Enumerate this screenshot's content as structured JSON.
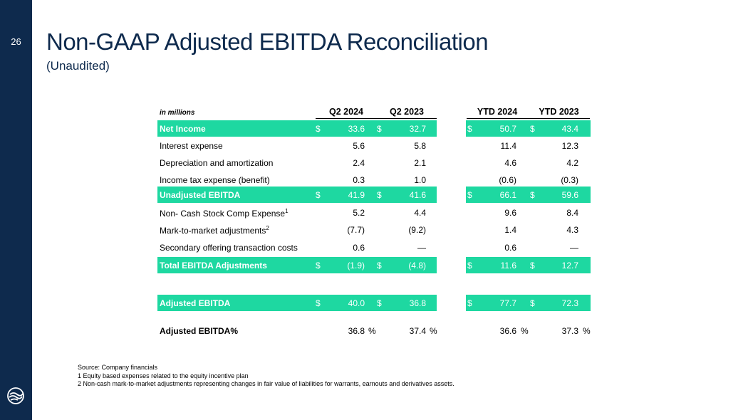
{
  "page_number": "26",
  "title": "Non-GAAP Adjusted EBITDA Reconciliation",
  "subtitle": "(Unaudited)",
  "table": {
    "unit_label": "in millions",
    "columns": [
      "Q2 2024",
      "Q2 2023",
      "YTD 2024",
      "YTD 2023"
    ],
    "rows": [
      {
        "label": "Net Income",
        "sup": "",
        "highlight": true,
        "values": [
          "33.6",
          "32.7",
          "50.7",
          "43.4"
        ]
      },
      {
        "label": "Interest expense",
        "sup": "",
        "highlight": false,
        "values": [
          "5.6",
          "5.8",
          "11.4",
          "12.3"
        ]
      },
      {
        "label": "Depreciation and amortization",
        "sup": "",
        "highlight": false,
        "values": [
          "2.4",
          "2.1",
          "4.6",
          "4.2"
        ]
      },
      {
        "label": "Income tax expense (benefit)",
        "sup": "",
        "highlight": false,
        "values": [
          "0.3",
          "1.0",
          "(0.6)",
          "(0.3)"
        ]
      },
      {
        "label": "Unadjusted EBITDA",
        "sup": "",
        "highlight": true,
        "values": [
          "41.9",
          "41.6",
          "66.1",
          "59.6"
        ]
      },
      {
        "label": "Non- Cash Stock  Comp Expense",
        "sup": "1",
        "highlight": false,
        "values": [
          "5.2",
          "4.4",
          "9.6",
          "8.4"
        ]
      },
      {
        "label": "Mark-to-market adjustments",
        "sup": "2",
        "highlight": false,
        "values": [
          "(7.7)",
          "(9.2)",
          "1.4",
          "4.3"
        ]
      },
      {
        "label": "Secondary offering transaction costs",
        "sup": "",
        "highlight": false,
        "values": [
          "0.6",
          "—",
          "0.6",
          "—"
        ]
      },
      {
        "label": "Total EBITDA Adjustments",
        "sup": "",
        "highlight": true,
        "values": [
          "(1.9)",
          "(4.8)",
          "11.6",
          "12.7"
        ]
      },
      {
        "label": "Adjusted EBITDA",
        "sup": "",
        "highlight": true,
        "values": [
          "40.0",
          "36.8",
          "77.7",
          "72.3"
        ]
      },
      {
        "label": "Adjusted EBITDA%",
        "sup": "",
        "highlight": false,
        "bold": true,
        "values": [
          "36.8",
          "37.4",
          "36.6",
          "37.3"
        ],
        "suffix": "%"
      }
    ],
    "currency_symbol": "$"
  },
  "footnotes": [
    "Source: Company financials",
    "1 Equity based expenses related to the equity incentive plan",
    "2 Non-cash mark-to-market adjustments representing changes in fair value of liabilities for warrants, earnouts and derivatives assets."
  ]
}
